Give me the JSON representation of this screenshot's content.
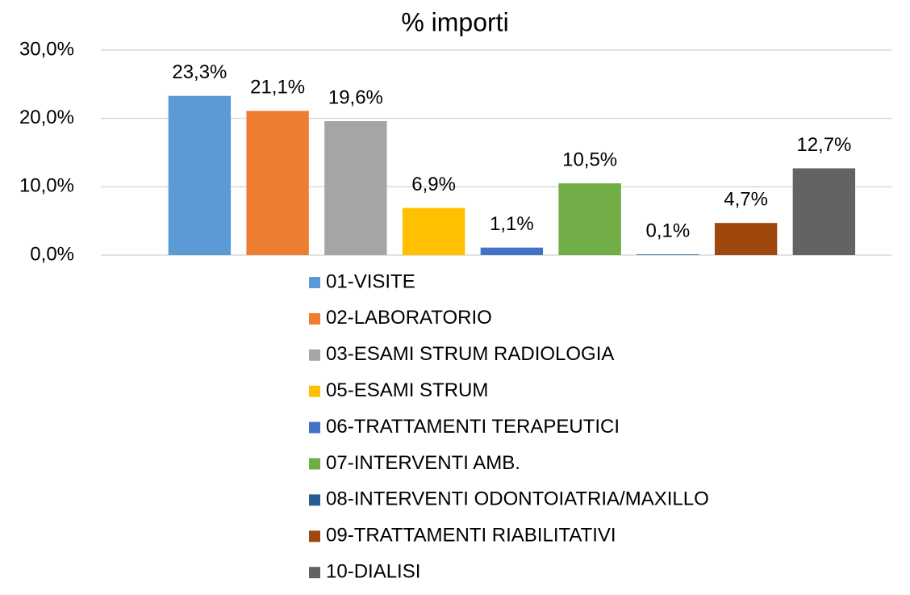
{
  "chart_data": {
    "type": "bar",
    "title": "% importi",
    "categories": [
      "01-VISITE",
      "02-LABORATORIO",
      "03-ESAMI STRUM RADIOLOGIA",
      "05-ESAMI STRUM",
      "06-TRATTAMENTI TERAPEUTICI",
      "07-INTERVENTI AMB.",
      "08-INTERVENTI ODONTOIATRIA/MAXILLO",
      "09-TRATTAMENTI RIABILITATIVI",
      "10-DIALISI"
    ],
    "values": [
      23.3,
      21.1,
      19.6,
      6.9,
      1.1,
      10.5,
      0.1,
      4.7,
      12.7
    ],
    "value_labels": [
      "23,3%",
      "21,1%",
      "19,6%",
      "6,9%",
      "1,1%",
      "10,5%",
      "0,1%",
      "4,7%",
      "12,7%"
    ],
    "colors": [
      "#5b9bd5",
      "#ed7d31",
      "#a5a5a5",
      "#ffc000",
      "#4472c4",
      "#70ad47",
      "#255e91",
      "#9e480e",
      "#636363"
    ],
    "ylim": [
      0,
      30
    ],
    "yticks": [
      {
        "value": 0,
        "label": "0,0%"
      },
      {
        "value": 10,
        "label": "10,0%"
      },
      {
        "value": 20,
        "label": "20,0%"
      },
      {
        "value": 30,
        "label": "30,0%"
      }
    ],
    "grid": true,
    "legend": "bottom"
  }
}
